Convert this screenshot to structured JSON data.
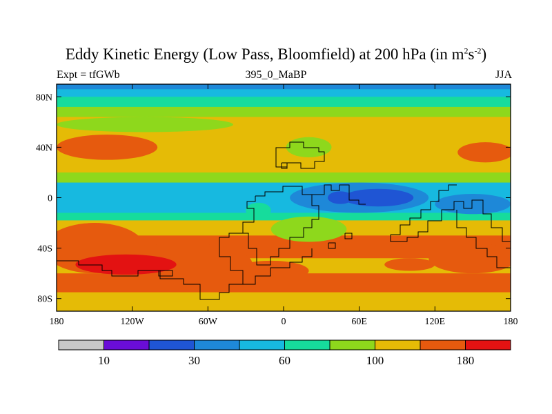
{
  "chart_data": {
    "type": "heatmap",
    "title_main": "Eddy Kinetic Energy (Low Pass, Bloomfield) at 200 hPa (in m",
    "title_unit_a": "2",
    "title_mid": "s",
    "title_unit_b": "-2",
    "title_end": ")",
    "left_label": "Expt = tfGWb",
    "center_label": "395_0_MaBP",
    "right_label": "JJA",
    "x_range": [
      -180,
      180
    ],
    "y_range": [
      -90,
      90
    ],
    "x_ticks": [
      {
        "value": -180,
        "label": "180"
      },
      {
        "value": -120,
        "label": "120W"
      },
      {
        "value": -60,
        "label": "60W"
      },
      {
        "value": 0,
        "label": "0"
      },
      {
        "value": 60,
        "label": "60E"
      },
      {
        "value": 120,
        "label": "120E"
      },
      {
        "value": 180,
        "label": "180"
      }
    ],
    "y_ticks": [
      {
        "value": 80,
        "label": "80N"
      },
      {
        "value": 40,
        "label": "40N"
      },
      {
        "value": 0,
        "label": "0"
      },
      {
        "value": -40,
        "label": "40S"
      },
      {
        "value": -80,
        "label": "80S"
      }
    ],
    "colorbar": {
      "colors": [
        "#c8c8c8",
        "#6a0dd8",
        "#1f55d4",
        "#1e88d8",
        "#17b9e0",
        "#16dc9c",
        "#8ed81c",
        "#e5bb06",
        "#e65a0e",
        "#e31212"
      ],
      "tick_labels": [
        {
          "after_box": 1,
          "label": "10"
        },
        {
          "after_box": 3,
          "label": "30"
        },
        {
          "after_box": 5,
          "label": "60"
        },
        {
          "after_box": 7,
          "label": "100"
        },
        {
          "after_box": 9,
          "label": "180"
        }
      ]
    },
    "latitude_bands": [
      {
        "lat_range": [
          90,
          86
        ],
        "level": 3
      },
      {
        "lat_range": [
          86,
          80
        ],
        "level": 4
      },
      {
        "lat_range": [
          80,
          72
        ],
        "level": 5
      },
      {
        "lat_range": [
          72,
          64
        ],
        "level": 6
      },
      {
        "lat_range": [
          64,
          20
        ],
        "level": 7
      },
      {
        "lat_range": [
          20,
          12
        ],
        "level": 6
      },
      {
        "lat_range": [
          12,
          -12
        ],
        "level": 4
      },
      {
        "lat_range": [
          -12,
          -18
        ],
        "level": 5
      },
      {
        "lat_range": [
          -18,
          -30
        ],
        "level": 7
      },
      {
        "lat_range": [
          -30,
          -48
        ],
        "level": 8
      },
      {
        "lat_range": [
          -48,
          -60
        ],
        "level": 7
      },
      {
        "lat_range": [
          -60,
          -75
        ],
        "level": 8
      },
      {
        "lat_range": [
          -75,
          -90
        ],
        "level": 7
      }
    ],
    "features": [
      {
        "lon": -140,
        "lat": 40,
        "rlon": 40,
        "rlat": 10,
        "level": 8
      },
      {
        "lon": 160,
        "lat": 36,
        "rlon": 22,
        "rlat": 8,
        "level": 8
      },
      {
        "lon": -110,
        "lat": 58,
        "rlon": 70,
        "rlat": 6,
        "level": 6
      },
      {
        "lon": 20,
        "lat": 40,
        "rlon": 18,
        "rlat": 8,
        "level": 6
      },
      {
        "lon": 60,
        "lat": 0,
        "rlon": 55,
        "rlat": 12,
        "level": 3
      },
      {
        "lon": 75,
        "lat": 0,
        "rlon": 28,
        "rlat": 7,
        "level": 2
      },
      {
        "lon": 45,
        "lat": 0,
        "rlon": 10,
        "rlat": 5,
        "level": 2
      },
      {
        "lon": 150,
        "lat": -5,
        "rlon": 30,
        "rlat": 8,
        "level": 3
      },
      {
        "lon": -150,
        "lat": -40,
        "rlon": 40,
        "rlat": 20,
        "level": 8
      },
      {
        "lon": -80,
        "lat": -52,
        "rlon": 55,
        "rlat": 16,
        "level": 8
      },
      {
        "lon": -125,
        "lat": -53,
        "rlon": 40,
        "rlat": 8,
        "level": 9
      },
      {
        "lon": 150,
        "lat": -48,
        "rlon": 35,
        "rlat": 12,
        "level": 8
      },
      {
        "lon": 100,
        "lat": -53,
        "rlon": 20,
        "rlat": 5,
        "level": 8
      },
      {
        "lon": -10,
        "lat": -58,
        "rlon": 30,
        "rlat": 8,
        "level": 8
      },
      {
        "lon": 20,
        "lat": -25,
        "rlon": 30,
        "rlat": 10,
        "level": 6
      },
      {
        "lon": -20,
        "lat": -10,
        "rlon": 10,
        "rlat": 6,
        "level": 5
      }
    ]
  }
}
